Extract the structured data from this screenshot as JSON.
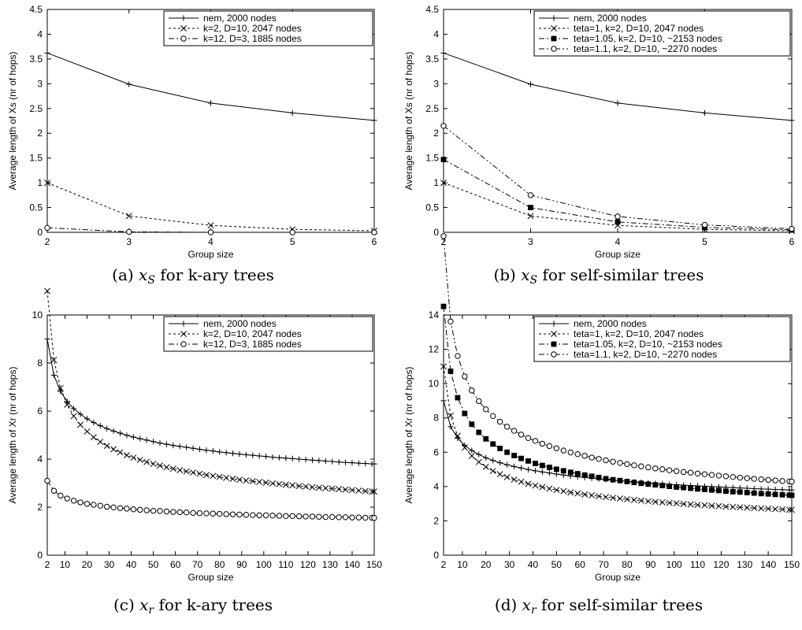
{
  "chart_data": [
    {
      "type": "line",
      "caption": "(a) x_S for k-ary trees",
      "xlabel": "Group size",
      "ylabel": "Average length of Xs (nr of hops)",
      "xlim": [
        2,
        6
      ],
      "ylim": [
        0,
        4.5
      ],
      "xticks": [
        2,
        3,
        4,
        5,
        6
      ],
      "yticks": [
        0,
        0.5,
        1,
        1.5,
        2,
        2.5,
        3,
        3.5,
        4,
        4.5
      ],
      "grid": false,
      "legend_position": "top-right",
      "series": [
        {
          "name": "nem, 2000 nodes",
          "marker": "plus",
          "dash": "solid",
          "x": [
            2,
            3,
            4,
            5,
            6
          ],
          "y": [
            3.62,
            2.99,
            2.61,
            2.41,
            2.26
          ]
        },
        {
          "name": "k=2, D=10, 2047 nodes",
          "marker": "x",
          "dash": "dotted",
          "x": [
            2,
            3,
            4,
            5,
            6
          ],
          "y": [
            1.0,
            0.33,
            0.14,
            0.06,
            0.03
          ]
        },
        {
          "name": "k=12, D=3, 1885 nodes",
          "marker": "circle",
          "dash": "dashdot",
          "x": [
            2,
            3,
            4,
            5,
            6
          ],
          "y": [
            0.09,
            0.01,
            0.0,
            0.0,
            0.0
          ]
        }
      ]
    },
    {
      "type": "line",
      "caption": "(b) x_S for self-similar trees",
      "xlabel": "Group size",
      "ylabel": "Average length of Xs (nr of hops)",
      "xlim": [
        2,
        6
      ],
      "ylim": [
        0,
        4.5
      ],
      "xticks": [
        2,
        3,
        4,
        5,
        6
      ],
      "yticks": [
        0,
        0.5,
        1,
        1.5,
        2,
        2.5,
        3,
        3.5,
        4,
        4.5
      ],
      "grid": false,
      "legend_position": "top-right",
      "series": [
        {
          "name": "nem, 2000 nodes",
          "marker": "plus",
          "dash": "solid",
          "x": [
            2,
            3,
            4,
            5,
            6
          ],
          "y": [
            3.62,
            2.99,
            2.61,
            2.41,
            2.26
          ]
        },
        {
          "name": "teta=1, k=2, D=10, 2047 nodes",
          "marker": "x",
          "dash": "dotted",
          "x": [
            2,
            3,
            4,
            5,
            6
          ],
          "y": [
            1.0,
            0.33,
            0.14,
            0.06,
            0.03
          ]
        },
        {
          "name": "teta=1.05, k=2, D=10, ~2153 nodes",
          "marker": "square",
          "dash": "dashdot",
          "x": [
            2,
            3,
            4,
            5,
            6
          ],
          "y": [
            1.47,
            0.5,
            0.21,
            0.1,
            0.05
          ]
        },
        {
          "name": "teta=1.1, k=2, D=10, ~2270 nodes",
          "marker": "circle",
          "dash": "dashdotdot",
          "x": [
            2,
            3,
            4,
            5,
            6
          ],
          "y": [
            2.15,
            0.75,
            0.32,
            0.15,
            0.07
          ]
        }
      ]
    },
    {
      "type": "line",
      "caption": "(c) x_r for k-ary trees",
      "xlabel": "Group size",
      "ylabel": "Average length of Xr (nr of hops)",
      "xlim": [
        2,
        150
      ],
      "ylim": [
        0,
        10
      ],
      "xticks": [
        2,
        10,
        20,
        30,
        40,
        50,
        60,
        70,
        80,
        90,
        100,
        110,
        120,
        130,
        140,
        150
      ],
      "yticks": [
        0,
        2,
        4,
        6,
        8,
        10
      ],
      "grid": false,
      "legend_position": "top-right",
      "series": [
        {
          "name": "nem, 2000 nodes",
          "marker": "plus",
          "dash": "solid",
          "curve": {
            "a": 9.0,
            "b": 2.0,
            "c": 0.2
          }
        },
        {
          "name": "k=2, D=10, 2047 nodes",
          "marker": "x",
          "dash": "dotted",
          "curve": {
            "a": 11.0,
            "b": 2.3,
            "c": 0.33
          }
        },
        {
          "name": "k=12, D=3, 1885 nodes",
          "marker": "circle",
          "dash": "dashdot",
          "curve": {
            "a": 3.1,
            "b": 1.3,
            "c": 0.16
          }
        }
      ]
    },
    {
      "type": "line",
      "caption": "(d) x_r for self-similar trees",
      "xlabel": "Group size",
      "ylabel": "Average length of Xr (nr of hops)",
      "xlim": [
        2,
        150
      ],
      "ylim": [
        0,
        14
      ],
      "xticks": [
        2,
        10,
        20,
        30,
        40,
        50,
        60,
        70,
        80,
        90,
        100,
        110,
        120,
        130,
        140,
        150
      ],
      "yticks": [
        0,
        2,
        4,
        6,
        8,
        10,
        12,
        14
      ],
      "grid": false,
      "legend_position": "top-right",
      "series": [
        {
          "name": "nem, 2000 nodes",
          "marker": "plus",
          "dash": "solid",
          "curve": {
            "a": 9.0,
            "b": 2.0,
            "c": 0.2
          }
        },
        {
          "name": "teta=1, k=2, D=10, 2047 nodes",
          "marker": "x",
          "dash": "dotted",
          "curve": {
            "a": 11.0,
            "b": 2.3,
            "c": 0.33
          }
        },
        {
          "name": "teta=1.05, k=2, D=10, ~2153 nodes",
          "marker": "square",
          "dash": "dashdot",
          "curve": {
            "a": 14.5,
            "b": 2.6,
            "c": 0.33
          }
        },
        {
          "name": "teta=1.1, k=2, D=10, ~2270 nodes",
          "marker": "circle",
          "dash": "dashdotdot",
          "curve": {
            "a": 18.6,
            "b": 3.15,
            "c": 0.34
          }
        }
      ]
    }
  ]
}
